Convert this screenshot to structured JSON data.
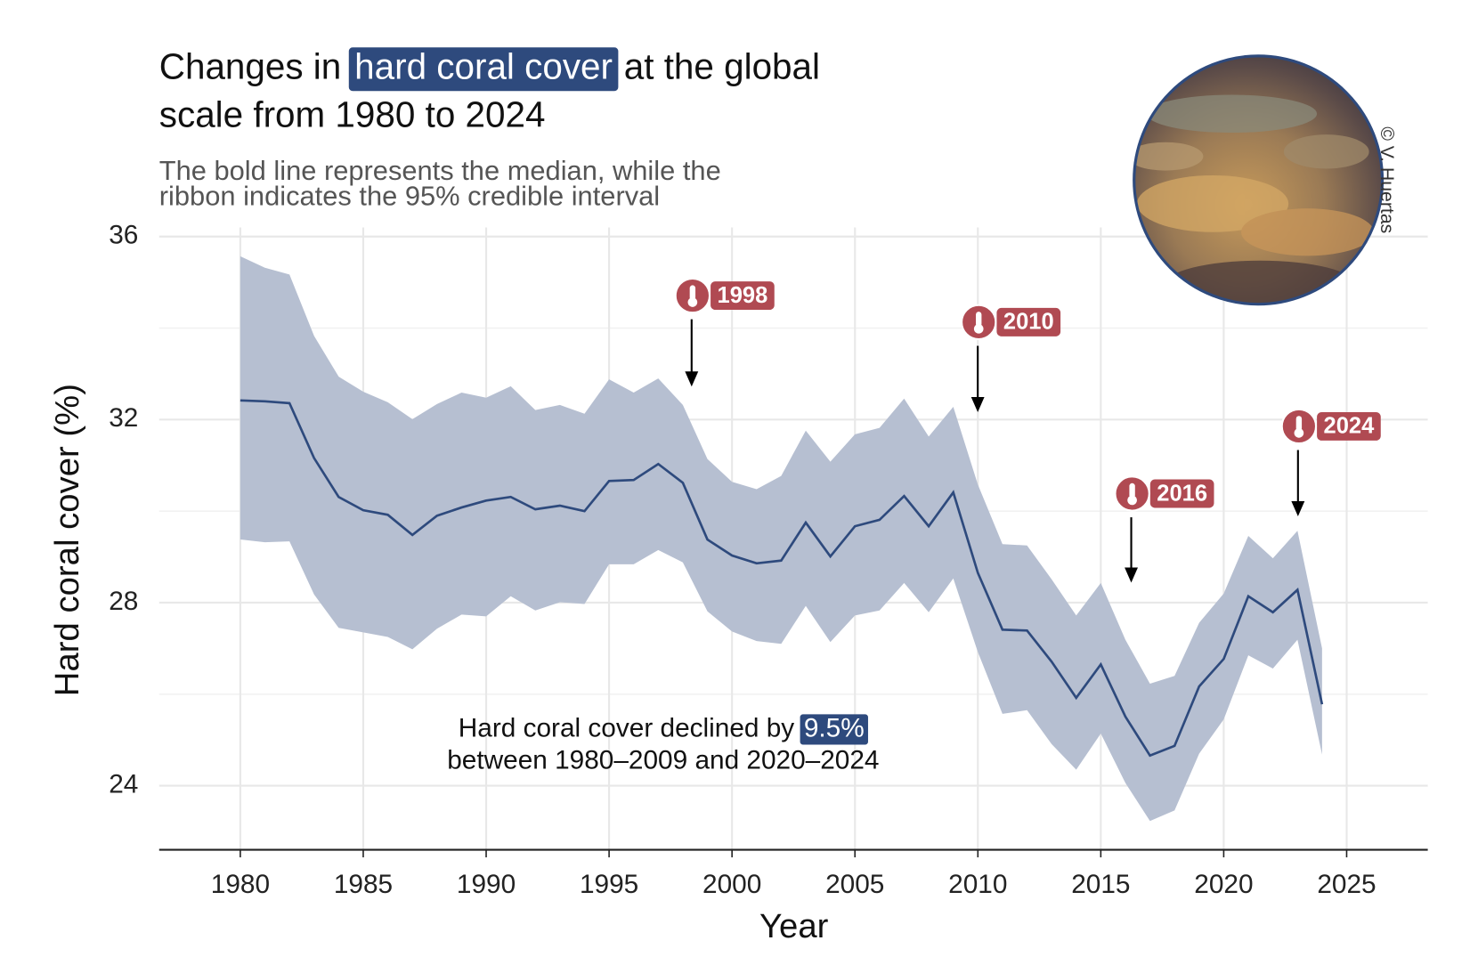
{
  "chart_data": {
    "type": "line",
    "title": {
      "before": "Changes in",
      "highlight": "hard coral cover",
      "after": "at the global",
      "line2": "scale from 1980 to 2024"
    },
    "subtitle": [
      "The bold line represents the median, while the",
      "ribbon indicates the 95% credible interval"
    ],
    "photo_credit": "© V. Huertas",
    "x_label": "Year",
    "y_label": "Hard coral cover (%)",
    "x": [
      1980,
      1981,
      1982,
      1983,
      1984,
      1985,
      1986,
      1987,
      1988,
      1989,
      1990,
      1991,
      1992,
      1993,
      1994,
      1995,
      1996,
      1997,
      1998,
      1999,
      2000,
      2001,
      2002,
      2003,
      2004,
      2005,
      2006,
      2007,
      2008,
      2009,
      2010,
      2011,
      2012,
      2013,
      2014,
      2015,
      2016,
      2017,
      2018,
      2019,
      2020,
      2021,
      2022,
      2023,
      2024
    ],
    "series": [
      {
        "color": "#2e4a7d",
        "values": [
          32.42,
          32.4,
          32.36,
          31.16,
          30.31,
          30.02,
          29.92,
          29.48,
          29.9,
          30.08,
          30.23,
          30.31,
          30.04,
          30.12,
          30.0,
          30.66,
          30.68,
          31.03,
          30.62,
          29.38,
          29.03,
          28.86,
          28.92,
          29.75,
          29.01,
          29.67,
          29.81,
          30.33,
          29.67,
          30.41,
          28.65,
          27.41,
          27.39,
          26.71,
          25.92,
          26.65,
          25.51,
          24.66,
          24.87,
          26.17,
          26.77,
          28.14,
          27.79,
          28.28,
          25.78
        ]
      }
    ],
    "ribbon": {
      "color": "#b6bfd1",
      "upper": [
        35.57,
        35.32,
        35.17,
        33.83,
        32.94,
        32.61,
        32.38,
        32.01,
        32.34,
        32.59,
        32.48,
        32.73,
        32.21,
        32.32,
        32.13,
        32.88,
        32.59,
        32.9,
        32.32,
        31.14,
        30.64,
        30.48,
        30.77,
        31.76,
        31.08,
        31.68,
        31.82,
        32.46,
        31.63,
        32.28,
        30.58,
        29.28,
        29.25,
        28.51,
        27.72,
        28.43,
        27.19,
        26.23,
        26.4,
        27.56,
        28.2,
        29.46,
        28.97,
        29.57,
        27.0
      ],
      "lower": [
        29.38,
        29.32,
        29.34,
        28.18,
        27.45,
        27.35,
        27.25,
        26.98,
        27.43,
        27.74,
        27.7,
        28.14,
        27.83,
        28.01,
        27.97,
        28.84,
        28.84,
        29.15,
        28.88,
        27.81,
        27.37,
        27.16,
        27.1,
        27.93,
        27.14,
        27.72,
        27.83,
        28.43,
        27.79,
        28.53,
        26.92,
        25.57,
        25.65,
        24.91,
        24.35,
        25.14,
        24.06,
        23.23,
        23.46,
        24.7,
        25.45,
        26.85,
        26.56,
        27.19,
        24.68
      ]
    },
    "xlim": [
      1976.7,
      2028.3
    ],
    "xticks": [
      1980,
      1985,
      1990,
      1995,
      2000,
      2005,
      2010,
      2015,
      2020,
      2025
    ],
    "ylim": [
      22.6,
      36.2
    ],
    "yticks": [
      24,
      28,
      32,
      36
    ],
    "yminor": [
      26,
      30,
      34
    ],
    "grid": true,
    "heatwaves": [
      "1998",
      "2010",
      "2016",
      "2024"
    ],
    "annotation": {
      "before": "Hard coral cover declined by",
      "highlight": "9.5%",
      "line2": "between 1980–2009 and 2020–2024"
    }
  }
}
